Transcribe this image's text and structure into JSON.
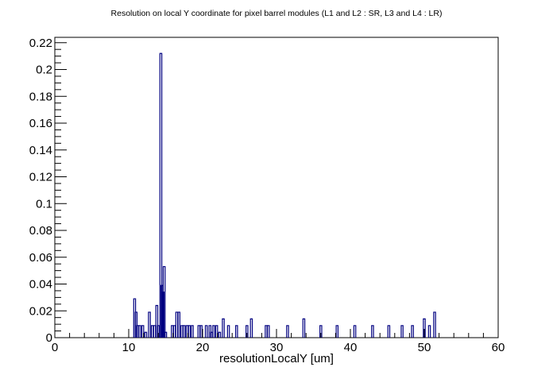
{
  "chart_data": {
    "type": "bar",
    "title": "Resolution on local Y coordinate for pixel barrel modules (L1 and L2 : SR, L3 and L4 : LR)",
    "xlabel": "resolutionLocalY [um]",
    "ylabel": "",
    "xlim": [
      0,
      60
    ],
    "ylim": [
      0,
      0.224
    ],
    "xticks": [
      0,
      10,
      20,
      30,
      40,
      50,
      60
    ],
    "yticks": [
      0,
      0.02,
      0.04,
      0.06,
      0.08,
      0.1,
      0.12,
      0.14,
      0.16,
      0.18,
      0.2,
      0.22
    ],
    "grid": false,
    "legend": "none",
    "line_color": "#000080",
    "series": [
      {
        "x": [
          10.8,
          11.0,
          11.2,
          11.5,
          11.9,
          12.3,
          12.8,
          13.2,
          13.5,
          13.8,
          14.0,
          14.35,
          14.5,
          14.65,
          14.8,
          15.0,
          15.9,
          16.2,
          16.5,
          16.8,
          17.2,
          17.5,
          17.9,
          18.2,
          18.6,
          19.5,
          19.8,
          20.5,
          21.0,
          21.2,
          21.5,
          21.9,
          22.3,
          22.8,
          23.5,
          24.6,
          26.0,
          26.6,
          28.6,
          28.9,
          31.5,
          33.7,
          36.0,
          38.2,
          40.6,
          43.0,
          45.2,
          47.0,
          48.4,
          50.0,
          50.7,
          51.4
        ],
        "values": [
          0.029,
          0.019,
          0.009,
          0.009,
          0.009,
          0.004,
          0.019,
          0.009,
          0.009,
          0.024,
          0.009,
          0.212,
          0.039,
          0.034,
          0.053,
          0.004,
          0.009,
          0.009,
          0.019,
          0.019,
          0.009,
          0.009,
          0.009,
          0.009,
          0.009,
          0.009,
          0.009,
          0.009,
          0.009,
          0.004,
          0.009,
          0.009,
          0.004,
          0.014,
          0.009,
          0.009,
          0.009,
          0.014,
          0.009,
          0.009,
          0.009,
          0.014,
          0.009,
          0.009,
          0.009,
          0.009,
          0.009,
          0.009,
          0.009,
          0.014,
          0.009,
          0.019
        ]
      }
    ]
  }
}
